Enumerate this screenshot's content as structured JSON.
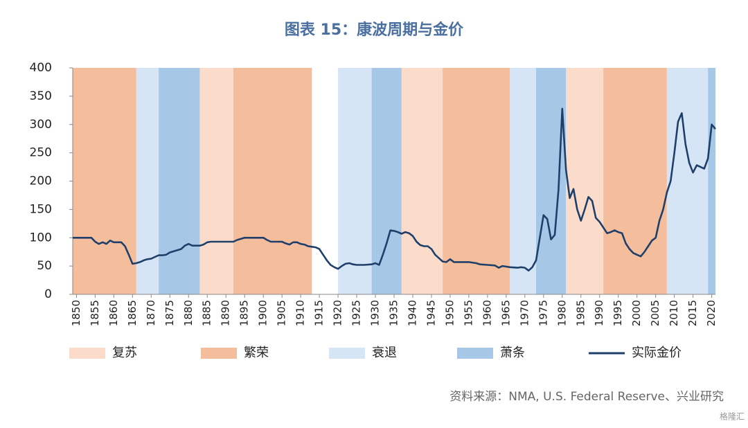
{
  "chart_data": {
    "type": "line",
    "title": "图表 15：康波周期与金价",
    "source": "资料来源：NMA, U.S. Federal Reserve、兴业研究",
    "watermark": "格隆汇",
    "xlim": [
      1849,
      2021
    ],
    "xticks": [
      1850,
      1855,
      1860,
      1865,
      1870,
      1875,
      1880,
      1885,
      1890,
      1895,
      1900,
      1905,
      1910,
      1915,
      1920,
      1925,
      1930,
      1935,
      1940,
      1945,
      1950,
      1955,
      1960,
      1965,
      1970,
      1975,
      1980,
      1985,
      1990,
      1995,
      2000,
      2005,
      2010,
      2015,
      2020
    ],
    "ylim": [
      0,
      400
    ],
    "yticks": [
      0,
      50,
      100,
      150,
      200,
      250,
      300,
      350,
      400
    ],
    "series": [
      {
        "name": "复苏",
        "type": "band",
        "color": "#fbdccb",
        "ranges": [
          [
            1883,
            1892
          ],
          [
            1937,
            1948
          ],
          [
            1981,
            1991
          ]
        ]
      },
      {
        "name": "繁荣",
        "type": "band",
        "color": "#f4bd9c",
        "ranges": [
          [
            1849,
            1866
          ],
          [
            1892,
            1913
          ],
          [
            1948,
            1966
          ],
          [
            1991,
            2008
          ]
        ]
      },
      {
        "name": "衰退",
        "type": "band",
        "color": "#d6e5f5",
        "ranges": [
          [
            1866,
            1872
          ],
          [
            1920,
            1929
          ],
          [
            1966,
            1973
          ],
          [
            2008,
            2019
          ]
        ]
      },
      {
        "name": "萧条",
        "type": "band",
        "color": "#a7c7e7",
        "ranges": [
          [
            1872,
            1883
          ],
          [
            1929,
            1937
          ],
          [
            1973,
            1981
          ],
          [
            2019,
            2021
          ]
        ]
      },
      {
        "name": "实际金价",
        "type": "line",
        "color": "#1f3f6b",
        "x": [
          1849,
          1852,
          1854,
          1855,
          1856,
          1857,
          1858,
          1859,
          1860,
          1861,
          1862,
          1863,
          1864,
          1865,
          1866,
          1867,
          1868,
          1869,
          1870,
          1871,
          1872,
          1873,
          1874,
          1875,
          1876,
          1877,
          1878,
          1879,
          1880,
          1881,
          1882,
          1883,
          1884,
          1885,
          1886,
          1890,
          1892,
          1893,
          1895,
          1900,
          1901,
          1902,
          1905,
          1906,
          1907,
          1908,
          1909,
          1910,
          1911,
          1912,
          1913,
          1914,
          1915,
          1916,
          1917,
          1918,
          1919,
          1920,
          1921,
          1922,
          1923,
          1924,
          1925,
          1927,
          1929,
          1930,
          1931,
          1932,
          1933,
          1934,
          1935,
          1936,
          1937,
          1938,
          1939,
          1940,
          1941,
          1942,
          1943,
          1944,
          1945,
          1946,
          1947,
          1948,
          1949,
          1950,
          1951,
          1952,
          1955,
          1957,
          1958,
          1960,
          1962,
          1963,
          1964,
          1966,
          1968,
          1969,
          1970,
          1971,
          1972,
          1973,
          1974,
          1975,
          1976,
          1977,
          1978,
          1979,
          1980,
          1981,
          1982,
          1983,
          1984,
          1985,
          1986,
          1987,
          1988,
          1989,
          1990,
          1991,
          1992,
          1993,
          1994,
          1995,
          1996,
          1997,
          1998,
          1999,
          2000,
          2001,
          2002,
          2003,
          2004,
          2005,
          2006,
          2007,
          2008,
          2009,
          2010,
          2011,
          2012,
          2013,
          2014,
          2015,
          2016,
          2017,
          2018,
          2019,
          2020,
          2021
        ],
        "values": [
          100,
          100,
          100,
          93,
          89,
          92,
          89,
          95,
          92,
          92,
          92,
          85,
          70,
          54,
          55,
          57,
          60,
          62,
          63,
          66,
          69,
          69,
          70,
          74,
          76,
          78,
          80,
          86,
          89,
          86,
          86,
          86,
          88,
          92,
          93,
          93,
          93,
          96,
          100,
          100,
          96,
          93,
          93,
          90,
          88,
          92,
          92,
          89,
          88,
          85,
          84,
          83,
          80,
          70,
          60,
          52,
          48,
          45,
          50,
          54,
          55,
          53,
          52,
          52,
          53,
          55,
          52,
          70,
          90,
          113,
          112,
          110,
          107,
          110,
          108,
          103,
          93,
          87,
          85,
          85,
          80,
          70,
          64,
          58,
          57,
          62,
          57,
          57,
          57,
          55,
          53,
          52,
          51,
          47,
          50,
          48,
          47,
          48,
          47,
          42,
          48,
          60,
          100,
          140,
          133,
          97,
          105,
          185,
          328,
          220,
          170,
          186,
          150,
          130,
          150,
          172,
          165,
          135,
          128,
          118,
          108,
          110,
          113,
          110,
          108,
          90,
          80,
          73,
          70,
          67,
          75,
          85,
          95,
          100,
          130,
          150,
          180,
          200,
          250,
          305,
          320,
          265,
          232,
          215,
          228,
          225,
          222,
          240,
          300,
          292
        ]
      }
    ]
  }
}
